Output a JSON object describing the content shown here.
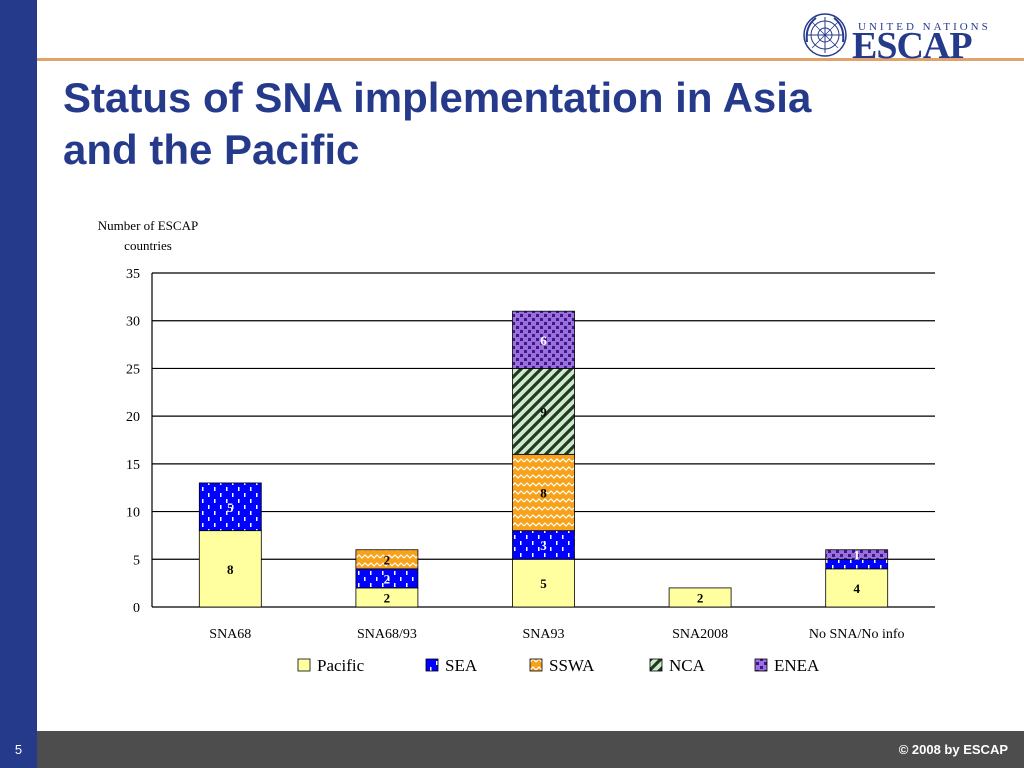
{
  "slide": {
    "title": "Status of SNA implementation in Asia and the Pacific",
    "page_number": "5",
    "copyright": "© 2008 by ESCAP",
    "logo_top": "UNITED NATIONS",
    "logo_name": "ESCAP"
  },
  "colors": {
    "brand_blue": "#263a8c",
    "accent_orange": "#e2a26b",
    "footer_gray": "#4d4d4d"
  },
  "chart_data": {
    "type": "bar",
    "stacked": true,
    "ylabel_lines": [
      "Number of ESCAP",
      "countries"
    ],
    "ylim": [
      0,
      35
    ],
    "yticks": [
      0,
      5,
      10,
      15,
      20,
      25,
      30,
      35
    ],
    "grid": true,
    "legend_position": "bottom",
    "categories": [
      "SNA68",
      "SNA68/93",
      "SNA93",
      "SNA2008",
      "No SNA/No info"
    ],
    "series": [
      {
        "name": "Pacific",
        "values": [
          8,
          2,
          5,
          2,
          4
        ],
        "labels": [
          "8",
          "2",
          "5",
          "2",
          "4"
        ],
        "pattern": "solid",
        "color": "#ffffa0",
        "label_color": "#000000"
      },
      {
        "name": "SEA",
        "values": [
          5,
          2,
          3,
          0,
          1
        ],
        "labels": [
          "5",
          "2",
          "3",
          "",
          ""
        ],
        "pattern": "dashes",
        "color": "#0000ff",
        "label_color": "#ffffff"
      },
      {
        "name": "SSWA",
        "values": [
          0,
          2,
          8,
          0,
          0
        ],
        "labels": [
          "",
          "2",
          "8",
          "",
          ""
        ],
        "pattern": "zigzag",
        "color": "#f7a21b",
        "label_color": "#000000"
      },
      {
        "name": "NCA",
        "values": [
          0,
          0,
          9,
          0,
          0
        ],
        "labels": [
          "",
          "",
          "9",
          "",
          ""
        ],
        "pattern": "diagonal",
        "color": "#1e3b1e",
        "label_color": "#000000"
      },
      {
        "name": "ENEA",
        "values": [
          0,
          0,
          6,
          0,
          1
        ],
        "labels": [
          "",
          "",
          "6",
          "",
          "1"
        ],
        "pattern": "checker",
        "color": "#9b6fe0",
        "label_color": "#ffffff"
      }
    ]
  }
}
